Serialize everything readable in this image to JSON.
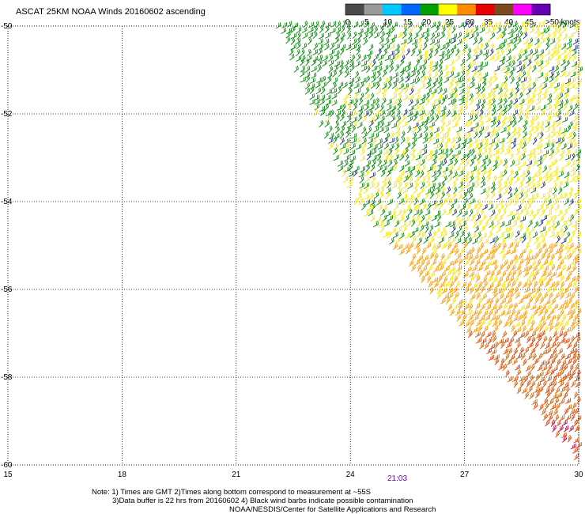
{
  "title": "ASCAT 25KM NOAA Winds 20160602 ascending",
  "legend": {
    "labels": [
      "0",
      "5",
      "10",
      "15",
      "20",
      "25",
      "30",
      "35",
      "40",
      "45",
      ">50 knots"
    ],
    "colors": [
      "#4a4a4a",
      "#9a9a9a",
      "#00c8ff",
      "#0066ff",
      "#00a000",
      "#ffff00",
      "#ff8c00",
      "#e60000",
      "#7a4a1e",
      "#ff00ff",
      "#6600b0"
    ]
  },
  "axes": {
    "longitude_ticks": [
      "15",
      "18",
      "21",
      "24",
      "27",
      "30"
    ],
    "latitude_ticks": [
      "-50",
      "-52",
      "-54",
      "-56",
      "-58",
      "-60"
    ],
    "lon_range": [
      15,
      30
    ],
    "lat_range": [
      -60,
      -50
    ]
  },
  "time_label": "21:03",
  "notes": {
    "line1": "Note: 1) Times are GMT 2)Times along bottom correspond to measurement at ~55S",
    "line2": "3)Data buffer is 22 hrs from 20160602 4) Black wind barbs indicate possible contamination",
    "line3": "NOAA/NESDIS/Center for Satellite Applications and Research"
  },
  "swath": {
    "edge": [
      [
        22.0,
        -50
      ],
      [
        24.0,
        -54
      ],
      [
        30.0,
        -60
      ]
    ],
    "bands": [
      {
        "speed_class": "15-20",
        "color": "#008800",
        "lat_from": -50,
        "lat_to": -55
      },
      {
        "speed_class": "20-25",
        "color": "#f5e600",
        "lat_from": -50,
        "lat_to": -55
      },
      {
        "speed_class": "25-30",
        "color": "#ff9900",
        "lat_from": -55,
        "lat_to": -57
      },
      {
        "speed_class": "30-35",
        "color": "#e04000",
        "lat_from": -57,
        "lat_to": -59
      },
      {
        "speed_class": "35-40",
        "color": "#c00040",
        "lat_from": -59,
        "lat_to": -60
      }
    ]
  }
}
